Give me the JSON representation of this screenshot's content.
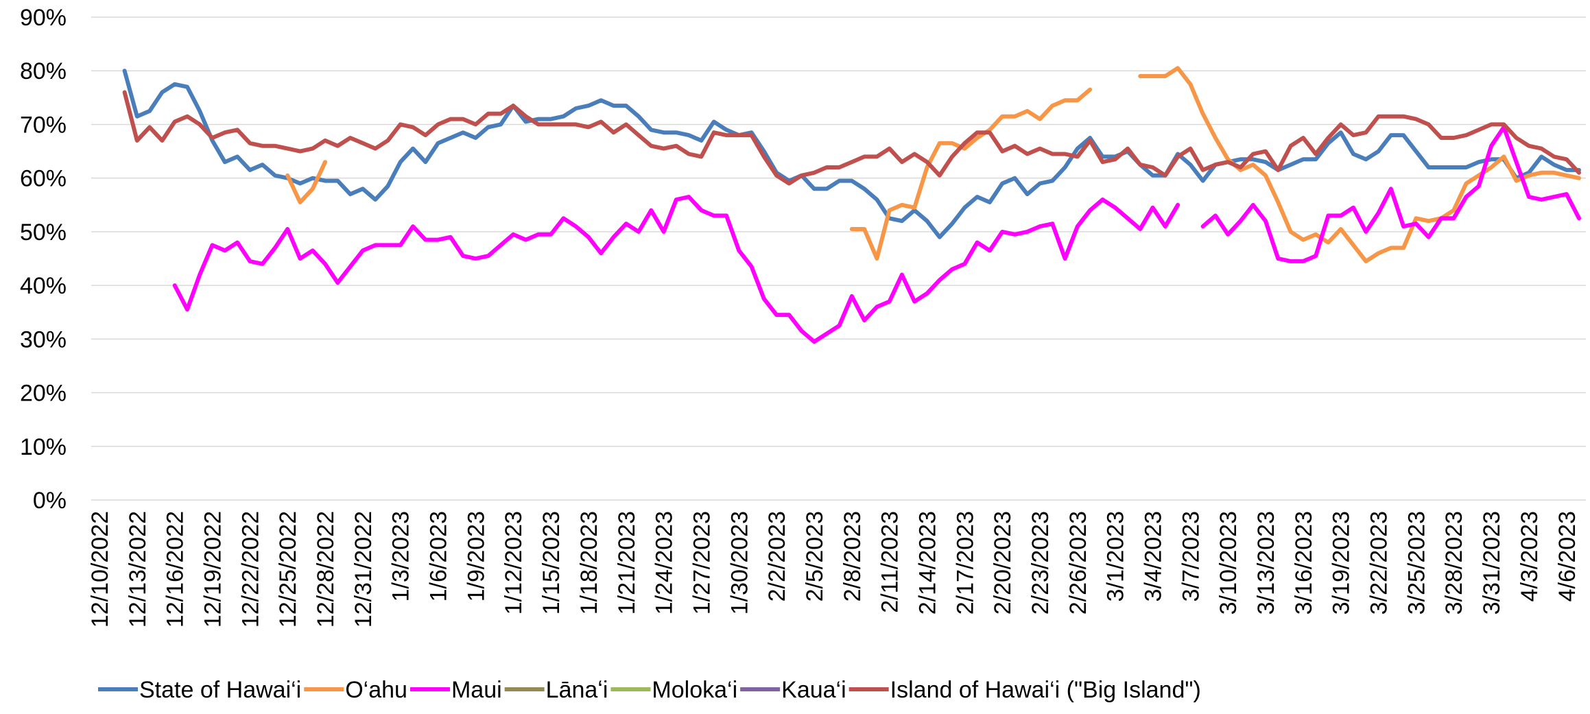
{
  "chart_data": {
    "type": "line",
    "categories": [
      "12/10/2022",
      null,
      null,
      "12/13/2022",
      null,
      null,
      "12/16/2022",
      null,
      null,
      "12/19/2022",
      null,
      null,
      "12/22/2022",
      null,
      null,
      "12/25/2022",
      null,
      null,
      "12/28/2022",
      null,
      null,
      "12/31/2022",
      null,
      null,
      "1/3/2023",
      null,
      null,
      "1/6/2023",
      null,
      null,
      "1/9/2023",
      null,
      null,
      "1/12/2023",
      null,
      null,
      "1/15/2023",
      null,
      null,
      "1/18/2023",
      null,
      null,
      "1/21/2023",
      null,
      null,
      "1/24/2023",
      null,
      null,
      "1/27/2023",
      null,
      null,
      "1/30/2023",
      null,
      null,
      "2/2/2023",
      null,
      null,
      "2/5/2023",
      null,
      null,
      "2/8/2023",
      null,
      null,
      "2/11/2023",
      null,
      null,
      "2/14/2023",
      null,
      null,
      "2/17/2023",
      null,
      null,
      "2/20/2023",
      null,
      null,
      "2/23/2023",
      null,
      null,
      "2/26/2023",
      null,
      null,
      "3/1/2023",
      null,
      null,
      "3/4/2023",
      null,
      null,
      "3/7/2023",
      null,
      null,
      "3/10/2023",
      null,
      null,
      "3/13/2023",
      null,
      null,
      "3/16/2023",
      null,
      null,
      "3/19/2023",
      null,
      null,
      "3/22/2023",
      null,
      null,
      "3/25/2023",
      null,
      null,
      "3/28/2023",
      null,
      null,
      "3/31/2023",
      null,
      null,
      "4/3/2023",
      null,
      null,
      "4/6/2023",
      null
    ],
    "series": [
      {
        "name": "State of Hawai‘i",
        "color": "#4a7ebb",
        "values": [
          null,
          null,
          80,
          71.5,
          72.5,
          76,
          77.5,
          77,
          72.5,
          67,
          63,
          64,
          61.5,
          62.5,
          60.5,
          60,
          59,
          60,
          59.5,
          59.5,
          57,
          58,
          56,
          58.5,
          63,
          65.5,
          63,
          66.5,
          67.5,
          68.5,
          67.5,
          69.5,
          70,
          73.5,
          70.5,
          71,
          71,
          71.5,
          73,
          73.5,
          74.5,
          73.5,
          73.5,
          71.5,
          69,
          68.5,
          68.5,
          68,
          67,
          70.5,
          69,
          68,
          68.5,
          65,
          61,
          59.5,
          60.5,
          58,
          58,
          59.5,
          59.5,
          58,
          56,
          52.5,
          52,
          54,
          52,
          49,
          51.5,
          54.5,
          56.5,
          55.5,
          59,
          60,
          57,
          59,
          59.5,
          62,
          65.5,
          67.5,
          64,
          64,
          65,
          62.5,
          60.5,
          60.5,
          64.5,
          62.5,
          59.5,
          62.5,
          63,
          63.5,
          63.5,
          63,
          61.5,
          62.5,
          63.5,
          63.5,
          66.5,
          68.5,
          64.5,
          63.5,
          65,
          68,
          68,
          65,
          62,
          62,
          62,
          62,
          63,
          63.5,
          63.5,
          60,
          61,
          64,
          62.5,
          61.5,
          61.5
        ]
      },
      {
        "name": "O‘ahu",
        "color": "#f79646",
        "values": [
          null,
          null,
          null,
          null,
          null,
          null,
          null,
          null,
          null,
          null,
          null,
          null,
          null,
          null,
          null,
          60.5,
          55.5,
          58,
          63,
          null,
          null,
          null,
          null,
          null,
          null,
          null,
          null,
          null,
          null,
          null,
          null,
          null,
          null,
          null,
          null,
          null,
          null,
          null,
          null,
          null,
          null,
          null,
          null,
          null,
          null,
          null,
          null,
          null,
          null,
          null,
          null,
          null,
          null,
          null,
          null,
          null,
          null,
          null,
          null,
          null,
          50.5,
          50.5,
          45,
          54,
          55,
          54.5,
          62,
          66.5,
          66.5,
          65.5,
          67.5,
          69,
          71.5,
          71.5,
          72.5,
          71,
          73.5,
          74.5,
          74.5,
          76.5,
          null,
          null,
          null,
          79,
          79,
          79,
          80.5,
          77.5,
          72,
          67.5,
          63.5,
          61.5,
          62.5,
          60.5,
          55.5,
          50,
          48.5,
          49.5,
          48,
          50.5,
          47.5,
          44.5,
          46,
          47,
          47,
          52.5,
          52,
          52.5,
          54,
          59,
          60.5,
          62,
          64,
          59.5,
          60.5,
          61,
          61,
          60.5,
          60
        ]
      },
      {
        "name": "Maui",
        "color": "#ff00ff",
        "values": [
          null,
          null,
          null,
          null,
          null,
          null,
          40,
          35.5,
          42,
          47.5,
          46.5,
          48,
          44.5,
          44,
          47,
          50.5,
          45,
          46.5,
          44,
          40.5,
          43.5,
          46.5,
          47.5,
          47.5,
          47.5,
          51,
          48.5,
          48.5,
          49,
          45.5,
          45,
          45.5,
          47.5,
          49.5,
          48.5,
          49.5,
          49.5,
          52.5,
          51,
          49,
          46,
          49,
          51.5,
          50,
          54,
          50,
          56,
          56.5,
          54,
          53,
          53,
          46.5,
          43.5,
          37.5,
          34.5,
          34.5,
          31.5,
          29.5,
          31,
          32.5,
          38,
          33.5,
          36,
          37,
          42,
          37,
          38.5,
          41,
          43,
          44,
          48,
          46.5,
          50,
          49.5,
          50,
          51,
          51.5,
          45,
          51,
          54,
          56,
          54.5,
          52.5,
          50.5,
          54.5,
          51,
          55,
          null,
          51,
          53,
          49.5,
          52,
          55,
          52,
          45,
          44.5,
          44.5,
          45.5,
          53,
          53,
          54.5,
          50,
          53.5,
          58,
          51,
          51.5,
          49,
          52.5,
          52.5,
          56.5,
          58.5,
          66,
          69.5,
          63,
          56.5,
          56,
          56.5,
          57,
          52.5
        ]
      },
      {
        "name": "Lānaʻi",
        "color": "#948a54",
        "values": [
          null,
          null,
          null,
          null,
          null,
          null,
          null,
          null,
          null,
          null,
          null,
          null,
          null,
          null,
          null,
          null,
          null,
          null,
          null,
          null,
          null,
          null,
          null,
          null,
          null,
          null,
          null,
          null,
          null,
          null,
          null,
          null,
          null,
          null,
          null,
          null,
          null,
          null,
          null,
          null,
          null,
          null,
          null,
          null,
          null,
          null,
          null,
          null,
          null,
          null,
          null,
          null,
          null,
          null,
          null,
          null,
          null,
          null,
          null,
          null,
          null,
          null,
          null,
          null,
          null,
          null,
          null,
          null,
          null,
          null,
          null,
          null,
          null,
          null,
          null,
          null,
          null,
          null,
          null,
          null,
          null,
          null,
          null,
          null,
          null,
          null,
          null,
          null,
          null,
          null,
          null,
          null,
          null,
          null,
          null,
          null,
          null,
          null,
          null,
          null,
          null,
          null,
          null,
          null,
          null,
          null,
          null,
          null,
          null,
          null,
          null,
          null,
          null,
          null,
          null,
          null,
          null,
          null,
          null
        ]
      },
      {
        "name": "Moloka‘i",
        "color": "#9bbb59",
        "values": [
          null,
          null,
          null,
          null,
          null,
          null,
          null,
          null,
          null,
          null,
          null,
          null,
          null,
          null,
          null,
          null,
          null,
          null,
          null,
          null,
          null,
          null,
          null,
          null,
          null,
          null,
          null,
          null,
          null,
          null,
          null,
          null,
          null,
          null,
          null,
          null,
          null,
          null,
          null,
          null,
          null,
          null,
          null,
          null,
          null,
          null,
          null,
          null,
          null,
          null,
          null,
          null,
          null,
          null,
          null,
          null,
          null,
          null,
          null,
          null,
          null,
          null,
          null,
          null,
          null,
          null,
          null,
          null,
          null,
          null,
          null,
          null,
          null,
          null,
          null,
          null,
          null,
          null,
          null,
          null,
          null,
          null,
          null,
          null,
          null,
          null,
          null,
          null,
          null,
          null,
          null,
          null,
          null,
          null,
          null,
          null,
          null,
          null,
          null,
          null,
          null,
          null,
          null,
          null,
          null,
          null,
          null,
          null,
          null,
          null,
          null,
          null,
          null,
          null,
          null,
          null,
          null,
          null,
          null
        ]
      },
      {
        "name": "Kaua‘i",
        "color": "#8064a2",
        "values": [
          null,
          null,
          null,
          null,
          null,
          null,
          null,
          null,
          null,
          null,
          null,
          null,
          null,
          null,
          null,
          null,
          null,
          null,
          null,
          null,
          null,
          null,
          null,
          null,
          null,
          null,
          null,
          null,
          null,
          null,
          null,
          null,
          null,
          null,
          null,
          null,
          null,
          null,
          null,
          null,
          null,
          null,
          null,
          null,
          null,
          null,
          null,
          null,
          null,
          null,
          null,
          null,
          null,
          null,
          null,
          null,
          null,
          null,
          null,
          null,
          null,
          null,
          null,
          null,
          null,
          null,
          null,
          null,
          null,
          null,
          null,
          null,
          null,
          null,
          null,
          null,
          null,
          null,
          null,
          null,
          null,
          null,
          null,
          null,
          null,
          null,
          null,
          null,
          null,
          null,
          null,
          null,
          null,
          null,
          null,
          null,
          null,
          null,
          null,
          null,
          null,
          null,
          null,
          null,
          null,
          null,
          null,
          null,
          null,
          null,
          null,
          null,
          null,
          null,
          null,
          null,
          null,
          null,
          null
        ]
      },
      {
        "name": "Island of Hawai‘i (\"Big Island\")",
        "color": "#c0504d",
        "values": [
          null,
          null,
          76,
          67,
          69.5,
          67,
          70.5,
          71.5,
          70,
          67.5,
          68.5,
          69,
          66.5,
          66,
          66,
          65.5,
          65,
          65.5,
          67,
          66,
          67.5,
          66.5,
          65.5,
          67,
          70,
          69.5,
          68,
          70,
          71,
          71,
          70,
          72,
          72,
          73.5,
          71.5,
          70,
          70,
          70,
          70,
          69.5,
          70.5,
          68.5,
          70,
          68,
          66,
          65.5,
          66,
          64.5,
          64,
          68.5,
          68,
          68,
          68,
          64,
          60.5,
          59,
          60.5,
          61,
          62,
          62,
          63,
          64,
          64,
          65.5,
          63,
          64.5,
          63,
          60.5,
          64,
          66.5,
          68.5,
          68.5,
          65,
          66,
          64.5,
          65.5,
          64.5,
          64.5,
          64,
          67,
          63,
          63.5,
          65.5,
          62.5,
          62,
          60.5,
          64,
          65.5,
          61.5,
          62.5,
          63,
          62,
          64.5,
          65,
          61.5,
          66,
          67.5,
          64.5,
          67.5,
          70,
          68,
          68.5,
          71.5,
          71.5,
          71.5,
          71,
          70,
          67.5,
          67.5,
          68,
          69,
          70,
          70,
          67.5,
          66,
          65.5,
          64,
          63.5,
          61
        ]
      }
    ],
    "ylim": [
      0,
      90
    ],
    "yticks": [
      {
        "value": 0,
        "label": "0%"
      },
      {
        "value": 10,
        "label": "10%"
      },
      {
        "value": 20,
        "label": "20%"
      },
      {
        "value": 30,
        "label": "30%"
      },
      {
        "value": 40,
        "label": "40%"
      },
      {
        "value": 50,
        "label": "50%"
      },
      {
        "value": 60,
        "label": "60%"
      },
      {
        "value": 70,
        "label": "70%"
      },
      {
        "value": 80,
        "label": "80%"
      },
      {
        "value": 90,
        "label": "90%"
      }
    ],
    "grid": true,
    "legend": "bottom"
  }
}
